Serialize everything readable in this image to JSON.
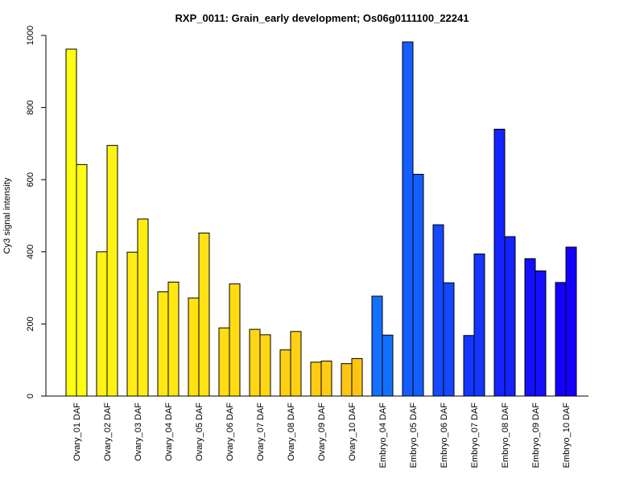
{
  "chart_data": {
    "type": "bar",
    "title": "RXP_0011: Grain_early development; Os06g0111100_22241",
    "xlabel": "",
    "ylabel": "Cy3 signal intensity",
    "ylim": [
      0,
      1000
    ],
    "yticks": [
      0,
      200,
      400,
      600,
      800,
      1000
    ],
    "grid": false,
    "legend": "none",
    "categories": [
      "Ovary_01 DAF",
      "Ovary_02 DAF",
      "Ovary_03 DAF",
      "Ovary_04 DAF",
      "Ovary_05 DAF",
      "Ovary_06 DAF",
      "Ovary_07 DAF",
      "Ovary_08 DAF",
      "Ovary_09 DAF",
      "Ovary_10 DAF",
      "Embryo_04 DAF",
      "Embryo_05 DAF",
      "Embryo_06 DAF",
      "Embryo_07 DAF",
      "Embryo_08 DAF",
      "Embryo_09 DAF",
      "Embryo_10 DAF"
    ],
    "series": [
      {
        "values": [
          962,
          400,
          399,
          289,
          272,
          189,
          185,
          128,
          94,
          90,
          277,
          982,
          475,
          168,
          740,
          381,
          315
        ]
      },
      {
        "values": [
          642,
          695,
          491,
          316,
          452,
          311,
          170,
          179,
          97,
          104,
          169,
          615,
          314,
          394,
          442,
          347,
          413
        ]
      }
    ],
    "colors": [
      "#ffff14",
      "#fff314",
      "#ffed14",
      "#ffe714",
      "#ffe114",
      "#ffdc14",
      "#ffd614",
      "#ffd014",
      "#ffcb14",
      "#ffc514",
      "#1470ff",
      "#145dff",
      "#1449ff",
      "#1436ff",
      "#1423ff",
      "#1410ff",
      "#1400ff"
    ]
  }
}
